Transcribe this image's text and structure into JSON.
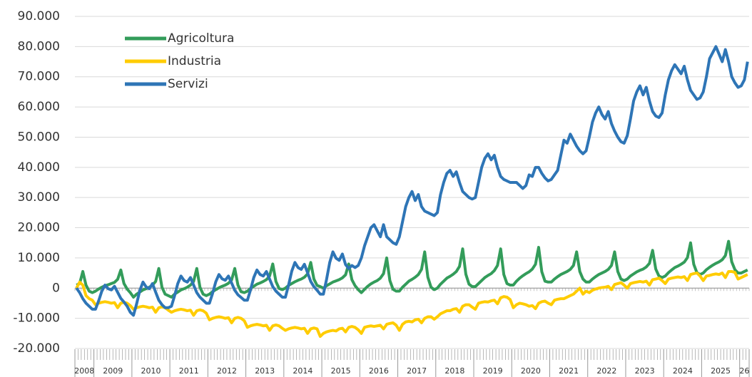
{
  "chart_data": {
    "type": "line",
    "categories": [
      "2008",
      null,
      null,
      null,
      null,
      null,
      "2009",
      null,
      null,
      null,
      null,
      null,
      null,
      null,
      null,
      null,
      null,
      null,
      "2010",
      null,
      null,
      null,
      null,
      null,
      null,
      null,
      null,
      null,
      null,
      null,
      "2011",
      null,
      null,
      null,
      null,
      null,
      null,
      null,
      null,
      null,
      null,
      null,
      "2012",
      null,
      null,
      null,
      null,
      null,
      null,
      null,
      null,
      null,
      null,
      null,
      "2013",
      null,
      null,
      null,
      null,
      null,
      null,
      null,
      null,
      null,
      null,
      null,
      "2014",
      null,
      null,
      null,
      null,
      null,
      null,
      null,
      null,
      null,
      null,
      null,
      "2015",
      null,
      null,
      null,
      null,
      null,
      null,
      null,
      null,
      null,
      null,
      null,
      "2016",
      null,
      null,
      null,
      null,
      null,
      null,
      null,
      null,
      null,
      null,
      null,
      "2017",
      null,
      null,
      null,
      null,
      null,
      null,
      null,
      null,
      null,
      null,
      null,
      "2018",
      null,
      null,
      null,
      null,
      null,
      null,
      null,
      null,
      null,
      null,
      null,
      "2019",
      null,
      null,
      null,
      null,
      null,
      null,
      null,
      null,
      null,
      null,
      null,
      "2020",
      null,
      null,
      null,
      null,
      null,
      null,
      null,
      null,
      null,
      null,
      null,
      "2021",
      null,
      null,
      null,
      null,
      null,
      null,
      null,
      null,
      null,
      null,
      null,
      "2022",
      null,
      null,
      null,
      null,
      null,
      null,
      null,
      null,
      null,
      null,
      null,
      "2023",
      null,
      null,
      null,
      null,
      null,
      null,
      null,
      null,
      null,
      null,
      null,
      "2024",
      null,
      null,
      null,
      null,
      null,
      null,
      null,
      null,
      null,
      null,
      null,
      "2025",
      null,
      null,
      null,
      null,
      null,
      null,
      null,
      null,
      null,
      null,
      null,
      "26",
      null,
      null
    ],
    "series": [
      {
        "name": "Agricoltura",
        "color": "#339c5a",
        "values": [
          1000,
          1500,
          5500,
          1000,
          -1000,
          -1500,
          -1000,
          -300,
          300,
          800,
          1100,
          1500,
          1900,
          2900,
          6000,
          1500,
          -300,
          -1500,
          -3000,
          -2000,
          -1300,
          -600,
          -200,
          300,
          1000,
          2200,
          6500,
          300,
          -2000,
          -2500,
          -3000,
          -2000,
          -1300,
          -600,
          -200,
          300,
          1000,
          2200,
          6500,
          300,
          -2000,
          -2500,
          -2000,
          -1200,
          -500,
          100,
          600,
          1000,
          1600,
          2700,
          6500,
          1000,
          -1200,
          -1500,
          -1000,
          -100,
          600,
          1300,
          1700,
          2200,
          2800,
          4000,
          8000,
          2200,
          -100,
          -500,
          0,
          900,
          1500,
          2100,
          2600,
          3000,
          3600,
          4700,
          8500,
          3000,
          900,
          500,
          0,
          800,
          1400,
          2000,
          2400,
          2800,
          3400,
          4400,
          8000,
          2800,
          800,
          -500,
          -1500,
          -400,
          600,
          1400,
          2000,
          2500,
          3300,
          4800,
          10000,
          2500,
          -400,
          -1000,
          -1000,
          300,
          1300,
          2300,
          2900,
          3600,
          4500,
          6200,
          12000,
          3600,
          300,
          -500,
          0,
          1300,
          2300,
          3300,
          3900,
          4600,
          5500,
          7200,
          13000,
          4600,
          1300,
          500,
          500,
          1500,
          2500,
          3500,
          4200,
          4800,
          5800,
          7500,
          13000,
          4500,
          1500,
          1000,
          1000,
          2300,
          3300,
          4100,
          4800,
          5400,
          6300,
          7900,
          13500,
          5400,
          2300,
          2000,
          2000,
          3000,
          3800,
          4500,
          5000,
          5500,
          6200,
          7500,
          12000,
          5500,
          3000,
          2000,
          2000,
          3000,
          3800,
          4500,
          5000,
          5500,
          6200,
          7500,
          12000,
          5500,
          3000,
          2500,
          3000,
          4000,
          4700,
          5400,
          5900,
          6300,
          7000,
          8200,
          12500,
          6300,
          4000,
          3500,
          4000,
          5100,
          6000,
          6800,
          7300,
          7900,
          8600,
          10100,
          15000,
          7900,
          5100,
          4500,
          5000,
          6100,
          6900,
          7600,
          8200,
          8700,
          9400,
          10800,
          15500,
          8700,
          6100,
          5000,
          5000,
          5500,
          6000
        ]
      },
      {
        "name": "Industria",
        "color": "#ffcc00",
        "values": [
          0,
          2000,
          1000,
          -2500,
          -3500,
          -4000,
          -5500,
          -5000,
          -4700,
          -4500,
          -4700,
          -5000,
          -4800,
          -6500,
          -5000,
          -4700,
          -5000,
          -5800,
          -7000,
          -6500,
          -6200,
          -6000,
          -6200,
          -6500,
          -6300,
          -8000,
          -6500,
          -6200,
          -6500,
          -7300,
          -8000,
          -7500,
          -7200,
          -7000,
          -7200,
          -7500,
          -7300,
          -9000,
          -7500,
          -7200,
          -7500,
          -8300,
          -10500,
          -10000,
          -9700,
          -9500,
          -9700,
          -10000,
          -9800,
          -11500,
          -10000,
          -9700,
          -10000,
          -10800,
          -13000,
          -12500,
          -12200,
          -12000,
          -12200,
          -12500,
          -12300,
          -14000,
          -12500,
          -12200,
          -12500,
          -13300,
          -14000,
          -13500,
          -13200,
          -13000,
          -13200,
          -13500,
          -13300,
          -15000,
          -13500,
          -13200,
          -13500,
          -16000,
          -15000,
          -14500,
          -14200,
          -14000,
          -14200,
          -13500,
          -13300,
          -14500,
          -13000,
          -12700,
          -13000,
          -13800,
          -15000,
          -13000,
          -12700,
          -12500,
          -12700,
          -12500,
          -12300,
          -13500,
          -12000,
          -11700,
          -11500,
          -12300,
          -14000,
          -12000,
          -11200,
          -11000,
          -11200,
          -10500,
          -10300,
          -11500,
          -10000,
          -9500,
          -9500,
          -10300,
          -9500,
          -8500,
          -8000,
          -7500,
          -7500,
          -7000,
          -6800,
          -8000,
          -6000,
          -5500,
          -5500,
          -6300,
          -7000,
          -5000,
          -4700,
          -4500,
          -4600,
          -4200,
          -4000,
          -5200,
          -3200,
          -2800,
          -3000,
          -3800,
          -6500,
          -5500,
          -5000,
          -5200,
          -5500,
          -6000,
          -5800,
          -6800,
          -5000,
          -4500,
          -4300,
          -5000,
          -5500,
          -4000,
          -3700,
          -3500,
          -3500,
          -3000,
          -2500,
          -2000,
          -1000,
          0,
          -2000,
          -1000,
          -1500,
          -700,
          -300,
          0,
          200,
          300,
          600,
          -500,
          1200,
          1500,
          1800,
          1000,
          0,
          1500,
          1800,
          2000,
          2200,
          2000,
          2300,
          1000,
          2800,
          3000,
          3300,
          2500,
          1500,
          3000,
          3300,
          3500,
          3700,
          3500,
          3800,
          2500,
          4500,
          4800,
          5000,
          4000,
          2500,
          4000,
          4200,
          4500,
          4700,
          4500,
          5000,
          3500,
          5500,
          5500,
          5200,
          3000,
          3500,
          4000,
          4500
        ]
      },
      {
        "name": "Servizi",
        "color": "#2e75b6",
        "values": [
          0,
          -1500,
          -3500,
          -5000,
          -6000,
          -7000,
          -7000,
          -4200,
          -1000,
          1000,
          -200,
          -600,
          600,
          -1400,
          -3400,
          -4600,
          -6000,
          -8000,
          -9000,
          -5200,
          -800,
          2000,
          400,
          -200,
          1500,
          -1300,
          -4000,
          -5500,
          -6500,
          -6500,
          -6000,
          -2500,
          1500,
          4000,
          2500,
          2000,
          3500,
          1000,
          -1500,
          -3000,
          -4000,
          -5000,
          -5000,
          -1700,
          2100,
          4500,
          3100,
          2600,
          4000,
          1700,
          -700,
          -2200,
          -3100,
          -4000,
          -4000,
          -500,
          3500,
          6000,
          4500,
          4000,
          5500,
          3000,
          500,
          -1000,
          -2000,
          -3000,
          -3000,
          1000,
          5600,
          8500,
          6800,
          6200,
          7900,
          5100,
          2200,
          500,
          -700,
          -2000,
          -2000,
          2900,
          8500,
          12000,
          9900,
          9200,
          11300,
          7800,
          6500,
          7500,
          6800,
          7500,
          10000,
          14000,
          17000,
          20000,
          21000,
          19000,
          17000,
          21000,
          17000,
          16000,
          15000,
          14500,
          17000,
          22000,
          27000,
          30000,
          32000,
          29000,
          31000,
          27000,
          25500,
          25000,
          24500,
          24000,
          25000,
          31000,
          35000,
          38000,
          39000,
          37000,
          38500,
          35000,
          32000,
          31000,
          30000,
          29500,
          30000,
          35000,
          40000,
          43000,
          44500,
          42500,
          44000,
          40000,
          37000,
          36000,
          35500,
          35000,
          35000,
          35000,
          34000,
          33000,
          34000,
          37500,
          37000,
          40000,
          40000,
          38000,
          36500,
          35500,
          36000,
          37500,
          39000,
          44000,
          49000,
          48000,
          51000,
          49000,
          47000,
          45500,
          44500,
          45500,
          50000,
          55000,
          58000,
          60000,
          57500,
          56000,
          58500,
          54500,
          52000,
          50000,
          48500,
          48000,
          50500,
          56000,
          62000,
          65000,
          67000,
          64000,
          66500,
          62000,
          58500,
          57000,
          56500,
          58000,
          64000,
          69000,
          72000,
          74000,
          72500,
          71000,
          73500,
          69000,
          65500,
          64000,
          62500,
          63000,
          65000,
          70000,
          76000,
          78000,
          80000,
          77500,
          75000,
          79000,
          75000,
          70000,
          68000,
          66500,
          67000,
          69000,
          75000
        ]
      }
    ],
    "ylim": [
      -20000,
      90000
    ],
    "yticks": [
      {
        "value": -20000,
        "label": "-20.000"
      },
      {
        "value": -10000,
        "label": "-10.000"
      },
      0,
      {
        "value": 10000,
        "label": "10.000"
      },
      {
        "value": 20000,
        "label": "20.000"
      },
      {
        "value": 30000,
        "label": "30.000"
      },
      {
        "value": 40000,
        "label": "40.000"
      },
      {
        "value": 50000,
        "label": "50.000"
      },
      {
        "value": 60000,
        "label": "60.000"
      },
      {
        "value": 70000,
        "label": "70.000"
      },
      {
        "value": 80000,
        "label": "80.000"
      },
      {
        "value": 90000,
        "label": "90.000"
      }
    ],
    "grid": true,
    "legend": "upper left"
  }
}
